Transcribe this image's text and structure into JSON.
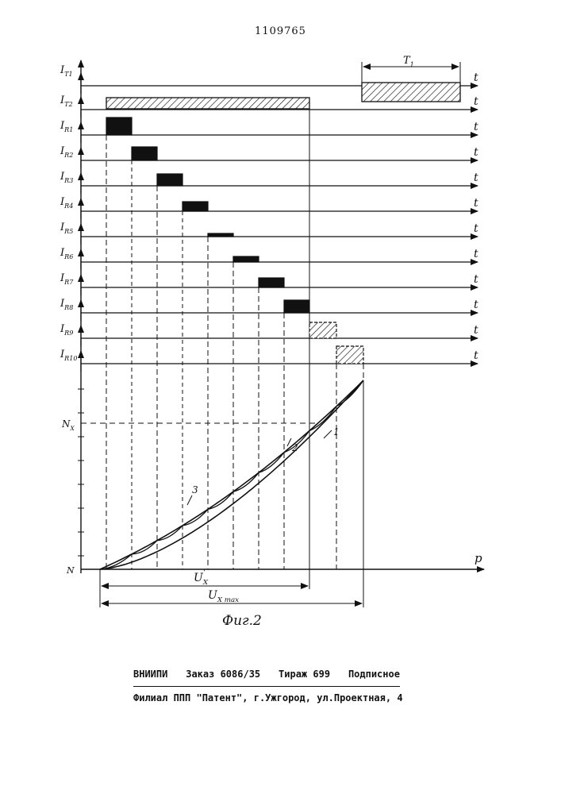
{
  "header": {
    "doc_number": "1109765"
  },
  "diagram": {
    "channel_labels": [
      "I_T1",
      "I_T2",
      "I_R1",
      "I_R2",
      "I_R3",
      "I_R4",
      "I_R5",
      "I_R6",
      "I_R7",
      "I_R8",
      "I_R9",
      "I_R10"
    ],
    "channel_label_parts": [
      [
        "I",
        "T1"
      ],
      [
        "I",
        "T2"
      ],
      [
        "I",
        "R1"
      ],
      [
        "I",
        "R2"
      ],
      [
        "I",
        "R3"
      ],
      [
        "I",
        "R4"
      ],
      [
        "I",
        "R5"
      ],
      [
        "I",
        "R6"
      ],
      [
        "I",
        "R7"
      ],
      [
        "I",
        "R8"
      ],
      [
        "I",
        "R9"
      ],
      [
        "I",
        "R10"
      ]
    ],
    "time_axis_label": "t",
    "pulse_label": "T1",
    "pulse_label_parts": [
      "T",
      "1"
    ],
    "y_axis_bottom_label": "N",
    "y_marker_label": "N",
    "y_marker_sub": "X",
    "x_axis_label": "p",
    "dimension_1": "U'X",
    "dimension_1_parts": [
      "U",
      "'",
      "X"
    ],
    "dimension_2": "UX max",
    "dimension_2_parts": [
      "U",
      "X max"
    ],
    "curve_labels": [
      "1",
      "2",
      "3"
    ],
    "pulse_fills": [
      "solid",
      "solid",
      "solid",
      "solid",
      "solid",
      "solid",
      "solid",
      "solid",
      "hatched",
      "hatched"
    ]
  },
  "figure_caption": "Фиг.2",
  "footer": {
    "line1": [
      "ВНИИПИ",
      "Заказ 6086/35",
      "Тираж 699",
      "Подписное"
    ],
    "line2": "Филиал ППП \"Патент\", г.Ужгород, ул.Проектная, 4"
  }
}
